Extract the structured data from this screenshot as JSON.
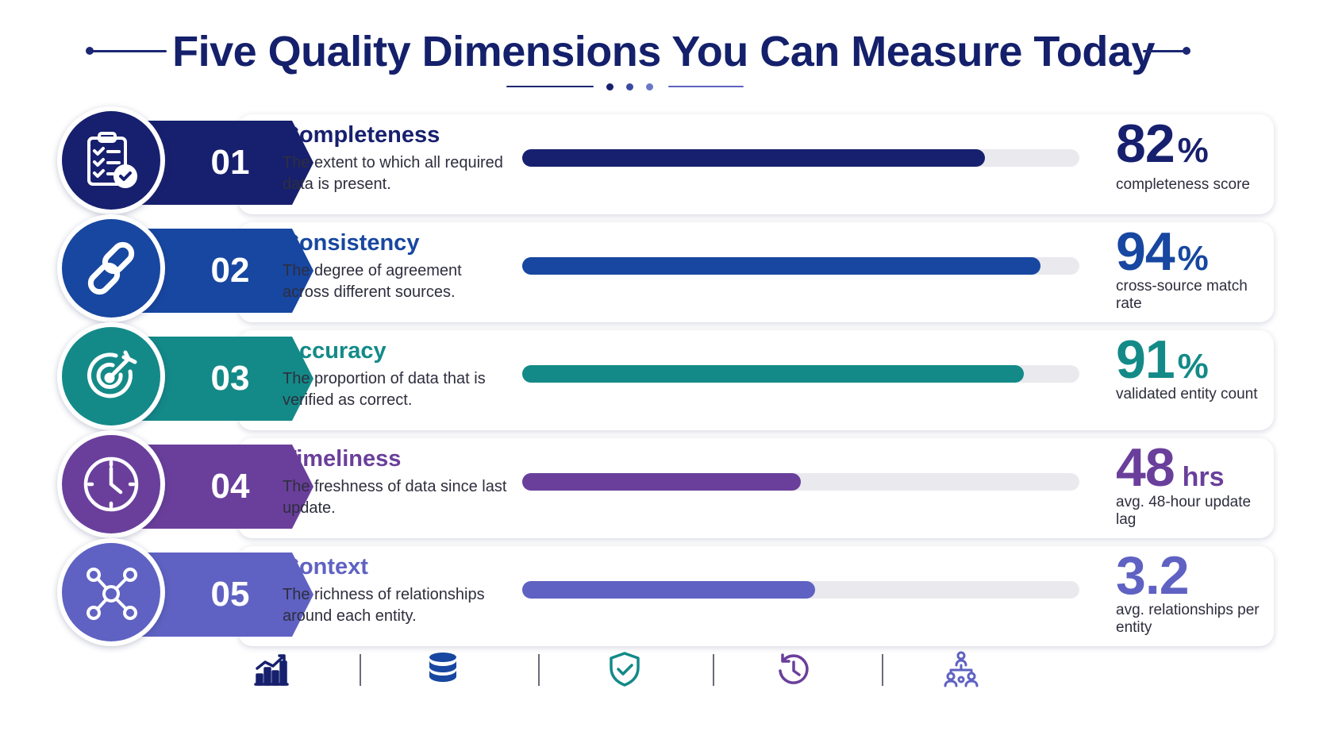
{
  "title": "Five Quality Dimensions You Can Measure Today",
  "dimensions": [
    {
      "number": "01",
      "name": "Completeness",
      "description": "The extent to which all required data is present.",
      "progress": 0.83,
      "metric_value": "82",
      "metric_unit": "%",
      "metric_label": "completeness score",
      "color": "#17206e",
      "icon": "clipboard-check-icon"
    },
    {
      "number": "02",
      "name": "Consistency",
      "description": "The degree of agreement across different sources.",
      "progress": 0.93,
      "metric_value": "94",
      "metric_unit": "%",
      "metric_label": "cross-source match rate",
      "color": "#1747a0",
      "icon": "chain-link-icon"
    },
    {
      "number": "03",
      "name": "Accuracy",
      "description": "The proportion of data that is verified as correct.",
      "progress": 0.9,
      "metric_value": "91",
      "metric_unit": "%",
      "metric_label": "validated entity count",
      "color": "#138a88",
      "icon": "target-icon"
    },
    {
      "number": "04",
      "name": "Timeliness",
      "description": "The freshness of data since last update.",
      "progress": 0.5,
      "metric_value": "48",
      "metric_unit": "hrs",
      "metric_label": "avg. 48-hour update lag",
      "color": "#6a3f9b",
      "icon": "clock-icon"
    },
    {
      "number": "05",
      "name": "Context",
      "description": "The richness of relationships around each entity.",
      "progress": 0.525,
      "metric_value": "3.2",
      "metric_unit": "",
      "metric_label": "avg. relationships per entity",
      "color": "#5f62c2",
      "icon": "network-nodes-icon"
    }
  ],
  "footer_icons": [
    {
      "icon": "bar-chart-growth-icon",
      "color": "#17206e"
    },
    {
      "icon": "database-icon",
      "color": "#1747a0"
    },
    {
      "icon": "shield-check-icon",
      "color": "#138a88"
    },
    {
      "icon": "history-clock-icon",
      "color": "#6a3f9b"
    },
    {
      "icon": "org-hierarchy-icon",
      "color": "#5f62c2"
    }
  ]
}
